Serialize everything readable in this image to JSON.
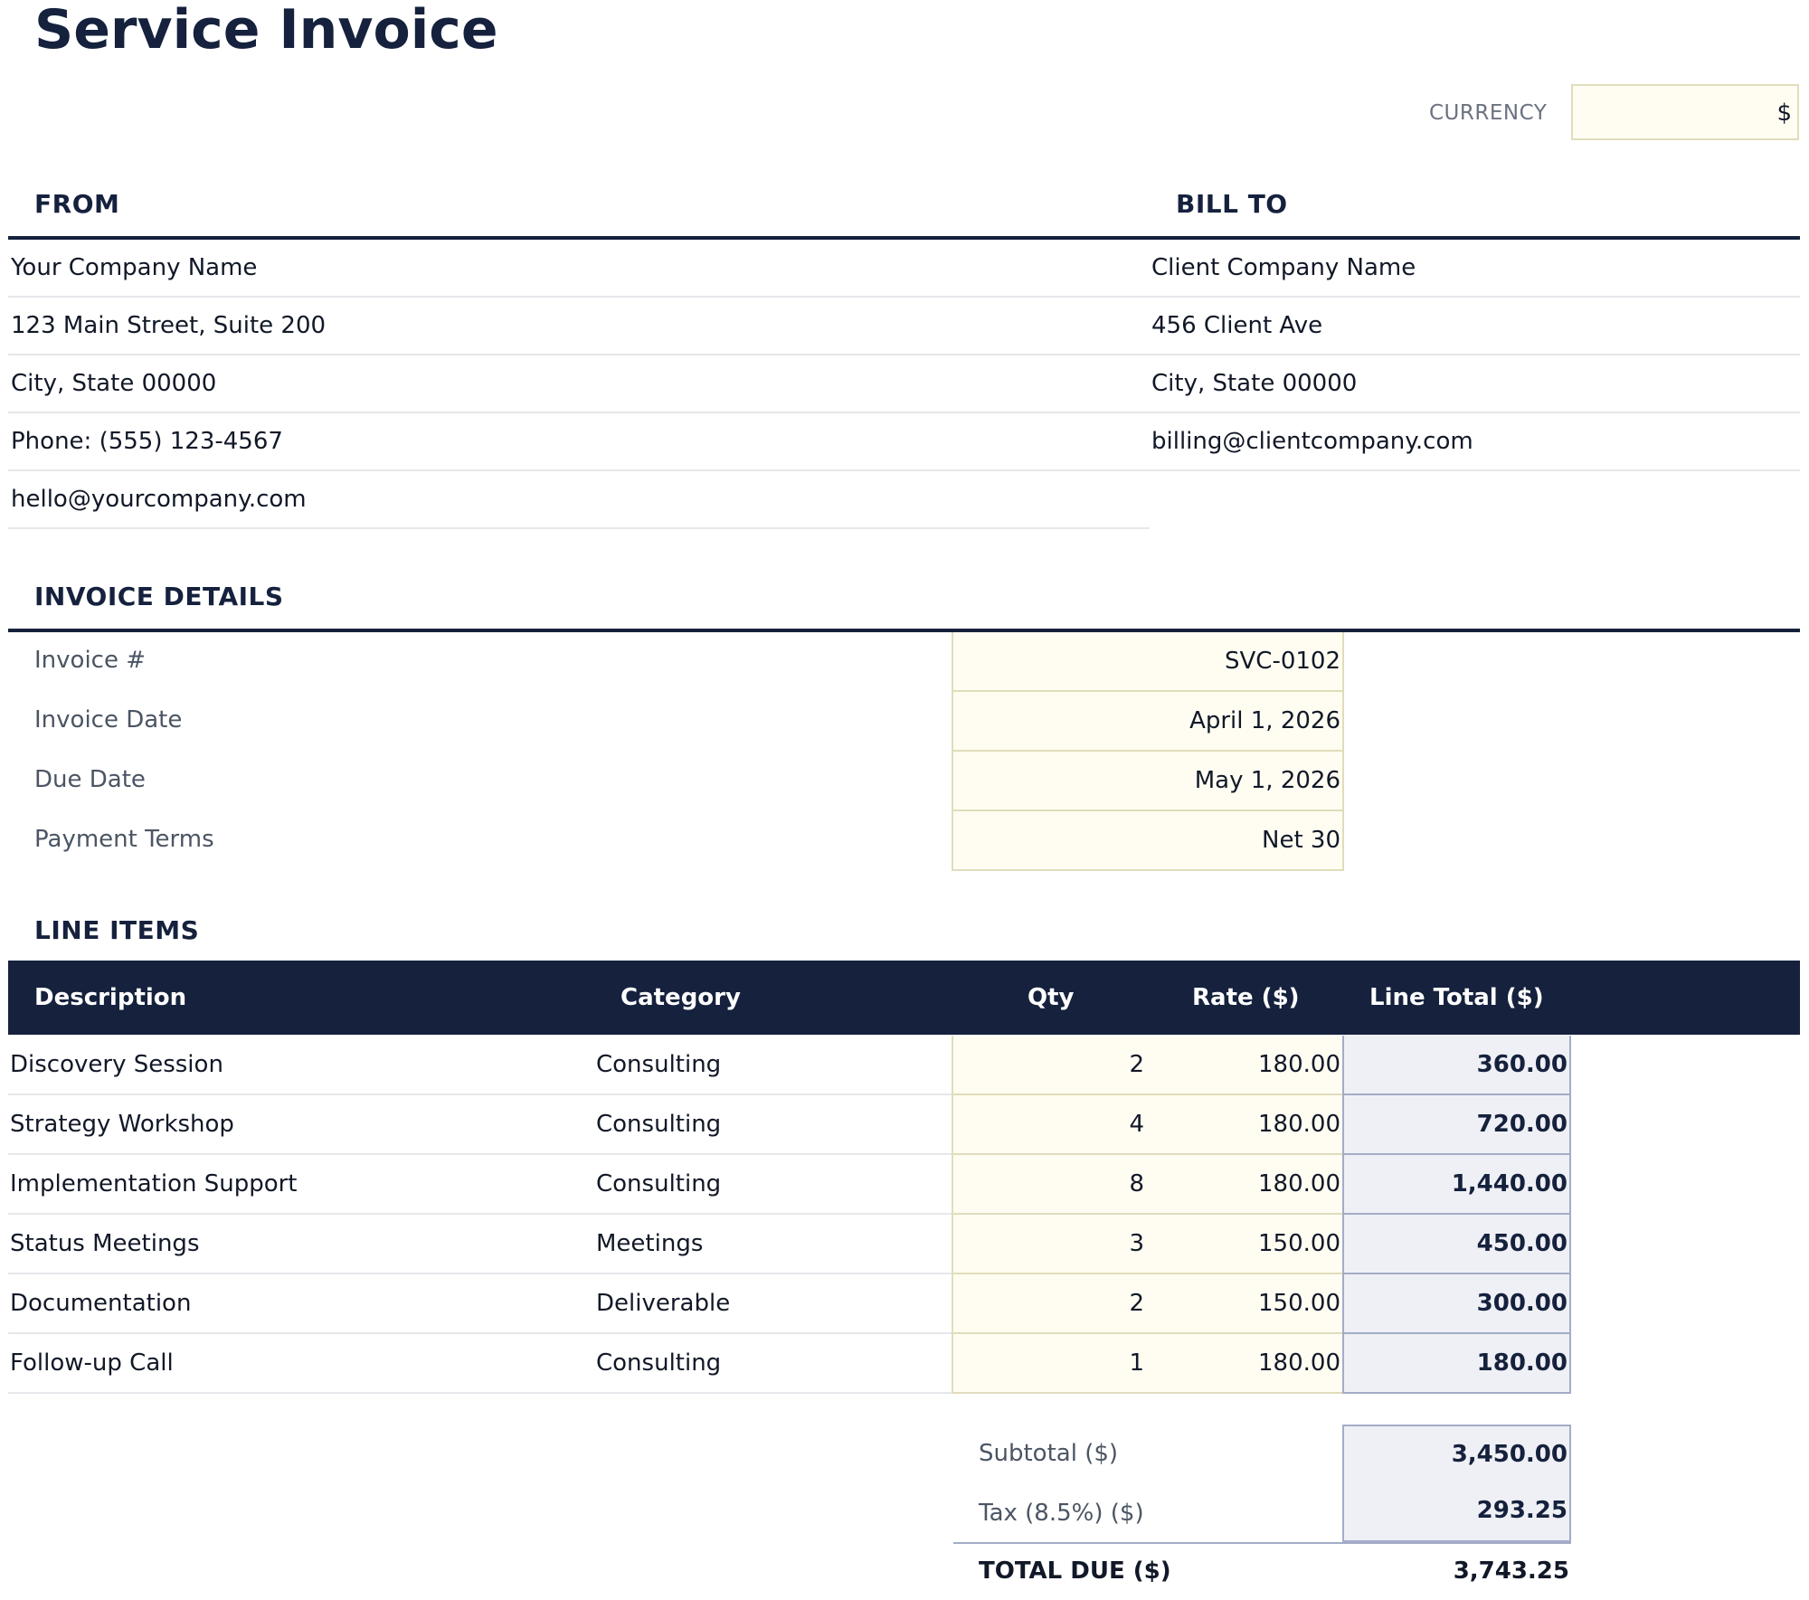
{
  "title": "Service Invoice",
  "currency": {
    "label": "CURRENCY",
    "value": "$"
  },
  "from": {
    "heading": "FROM",
    "lines": [
      "Your Company Name",
      "123 Main Street, Suite 200",
      "City, State 00000",
      "Phone: (555) 123-4567",
      "hello@yourcompany.com"
    ]
  },
  "bill_to": {
    "heading": "BILL TO",
    "lines": [
      "Client Company Name",
      "456 Client Ave",
      "City, State 00000",
      "billing@clientcompany.com"
    ]
  },
  "invoice_details": {
    "heading": "INVOICE DETAILS",
    "rows": [
      {
        "label": "Invoice #",
        "value": "SVC-0102"
      },
      {
        "label": "Invoice Date",
        "value": "April 1, 2026"
      },
      {
        "label": "Due Date",
        "value": "May 1, 2026"
      },
      {
        "label": "Payment Terms",
        "value": "Net 30"
      }
    ]
  },
  "line_items": {
    "heading": "LINE ITEMS",
    "columns": [
      "Description",
      "Category",
      "Qty",
      "Rate ($)",
      "Line Total ($)"
    ],
    "rows": [
      {
        "description": "Discovery Session",
        "category": "Consulting",
        "qty": "2",
        "rate": "180.00",
        "total": "360.00"
      },
      {
        "description": "Strategy Workshop",
        "category": "Consulting",
        "qty": "4",
        "rate": "180.00",
        "total": "720.00"
      },
      {
        "description": "Implementation Support",
        "category": "Consulting",
        "qty": "8",
        "rate": "180.00",
        "total": "1,440.00"
      },
      {
        "description": "Status Meetings",
        "category": "Meetings",
        "qty": "3",
        "rate": "150.00",
        "total": "450.00"
      },
      {
        "description": "Documentation",
        "category": "Deliverable",
        "qty": "2",
        "rate": "150.00",
        "total": "300.00"
      },
      {
        "description": "Follow-up Call",
        "category": "Consulting",
        "qty": "1",
        "rate": "180.00",
        "total": "180.00"
      }
    ]
  },
  "summary": {
    "subtotal_label": "Subtotal ($)",
    "subtotal": "3,450.00",
    "tax_label": "Tax (8.5%) ($)",
    "tax": "293.25",
    "total_label": "TOTAL DUE ($)",
    "total": "3,743.25"
  },
  "colors": {
    "navy": "#15213d",
    "input_fill": "#fffdf2",
    "input_border": "#e1dcbb",
    "computed_fill": "#eff0f5",
    "computed_border": "#a3acc8"
  }
}
